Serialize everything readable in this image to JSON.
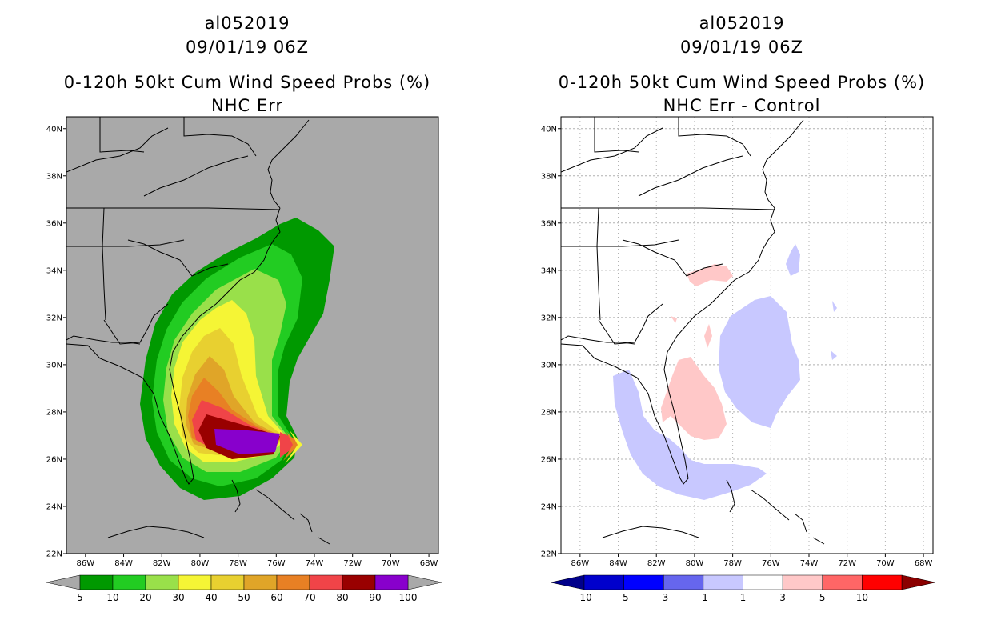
{
  "left": {
    "storm_id": "al052019",
    "datetime": "09/01/19 06Z",
    "title": "0-120h 50kt Cum Wind Speed Probs (%)",
    "subtitle": "NHC Err",
    "background_color": "#a9a9a9",
    "colorbar": {
      "colors": [
        "#009900",
        "#22cc22",
        "#99e04a",
        "#f5f535",
        "#e8d030",
        "#e0a528",
        "#e88024",
        "#f04448",
        "#990000",
        "#8800cc"
      ],
      "labels": [
        "5",
        "10",
        "20",
        "30",
        "40",
        "50",
        "60",
        "70",
        "80",
        "90",
        "100"
      ],
      "end_color": "#a9a9a9"
    }
  },
  "right": {
    "storm_id": "al052019",
    "datetime": "09/01/19 06Z",
    "title": "0-120h 50kt Cum Wind Speed Probs (%)",
    "subtitle": "NHC Err - Control",
    "background_color": "#ffffff",
    "colorbar": {
      "colors": [
        "#0000cc",
        "#0000ff",
        "#6666ee",
        "#c8c8ff",
        "#ffffff",
        "#ffc8c8",
        "#ff6666",
        "#ff0000"
      ],
      "labels": [
        "-10",
        "-5",
        "-3",
        "-1",
        "1",
        "3",
        "5",
        "10"
      ],
      "low_end_color": "#00008b",
      "high_end_color": "#8b0000"
    }
  },
  "axes": {
    "lat_labels": [
      "40N",
      "38N",
      "36N",
      "34N",
      "32N",
      "30N",
      "28N",
      "26N",
      "24N",
      "22N"
    ],
    "lon_labels": [
      "86W",
      "84W",
      "82W",
      "80W",
      "78W",
      "76W",
      "74W",
      "72W",
      "70W",
      "68W"
    ],
    "lon_range": [
      -87,
      -67.5
    ],
    "lat_range": [
      22,
      40.5
    ]
  }
}
